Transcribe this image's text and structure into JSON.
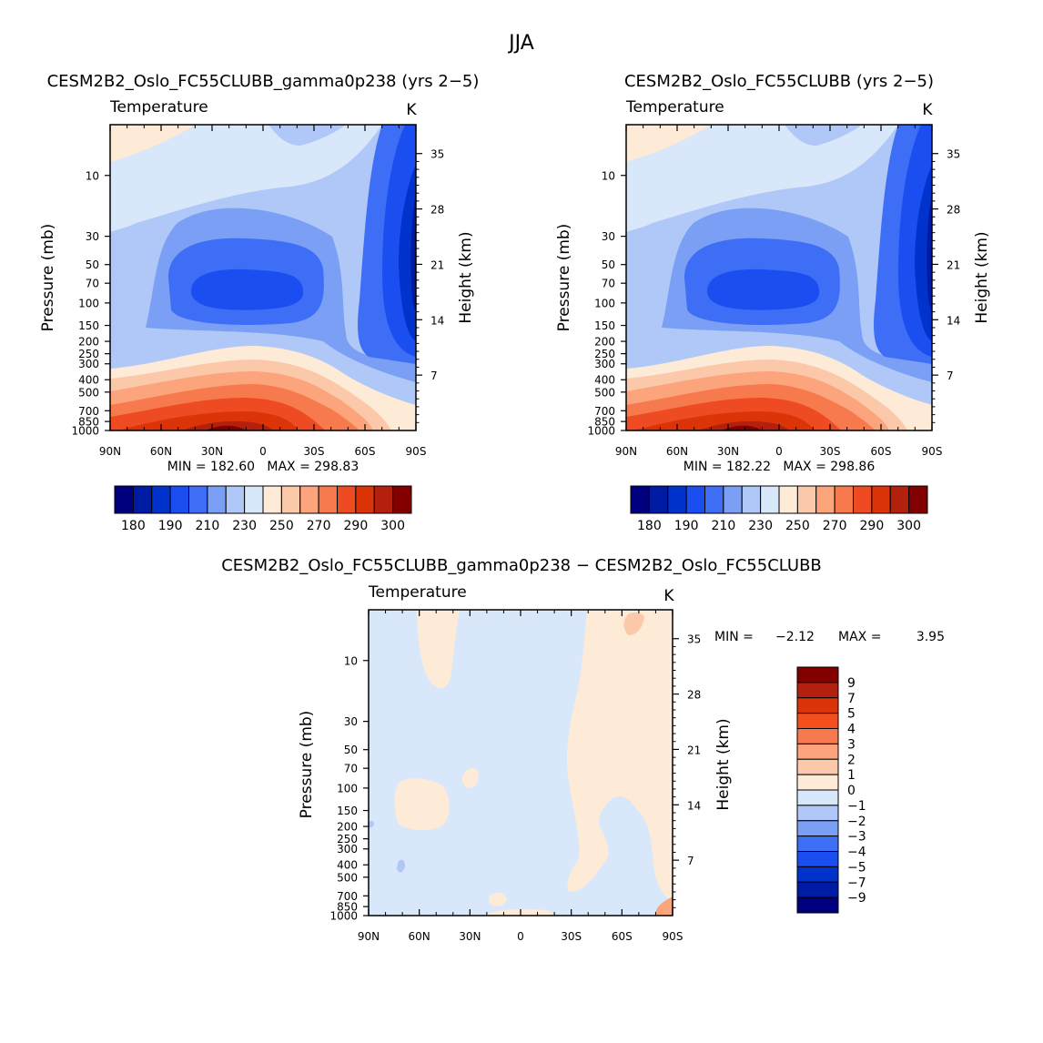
{
  "figure": {
    "title": "JJA"
  },
  "panels": {
    "p1": {
      "title": "CESM2B2_Oslo_FC55CLUBB_gamma0p238 (yrs 2−5)",
      "variable": "Temperature",
      "units": "K",
      "ylabel": "Pressure (mb)",
      "y2label": "Height (km)",
      "stats": "MIN = 182.60   MAX = 298.83"
    },
    "p2": {
      "title": "CESM2B2_Oslo_FC55CLUBB (yrs 2−5)",
      "variable": "Temperature",
      "units": "K",
      "ylabel": "Pressure (mb)",
      "y2label": "Height (km)",
      "stats": "MIN = 182.22   MAX = 298.86"
    },
    "p3": {
      "title": "CESM2B2_Oslo_FC55CLUBB_gamma0p238 − CESM2B2_Oslo_FC55CLUBB",
      "variable": "Temperature",
      "units": "K",
      "ylabel": "Pressure (mb)",
      "y2label": "Height (km)",
      "stats_min_label": "MIN =",
      "stats_min": "−2.12",
      "stats_max_label": "MAX =",
      "stats_max": "3.95"
    }
  },
  "chart_data": [
    {
      "type": "heatmap",
      "panel": "p1",
      "title": "CESM2B2_Oslo_FC55CLUBB_gamma0p238 (yrs 2−5)",
      "x_ticks": [
        "90N",
        "60N",
        "30N",
        "0",
        "30S",
        "60S",
        "90S"
      ],
      "y_ticks": [
        "10",
        "30",
        "50",
        "70",
        "100",
        "150",
        "200",
        "250",
        "300",
        "400",
        "500",
        "700",
        "850",
        "1000"
      ],
      "y_scale": "log",
      "ylim": [
        1000,
        4
      ],
      "y2_ticks": [
        "7",
        "14",
        "21",
        "28",
        "35"
      ],
      "min": 182.6,
      "max": 298.83,
      "colorbar_levels": [
        180,
        185,
        190,
        200,
        210,
        220,
        230,
        240,
        250,
        260,
        270,
        280,
        290,
        295,
        300
      ],
      "colorbar_labels": [
        "180",
        "190",
        "210",
        "230",
        "250",
        "270",
        "290",
        "300"
      ]
    },
    {
      "type": "heatmap",
      "panel": "p2",
      "title": "CESM2B2_Oslo_FC55CLUBB (yrs 2−5)",
      "x_ticks": [
        "90N",
        "60N",
        "30N",
        "0",
        "30S",
        "60S",
        "90S"
      ],
      "y_ticks": [
        "10",
        "30",
        "50",
        "70",
        "100",
        "150",
        "200",
        "250",
        "300",
        "400",
        "500",
        "700",
        "850",
        "1000"
      ],
      "y_scale": "log",
      "ylim": [
        1000,
        4
      ],
      "y2_ticks": [
        "7",
        "14",
        "21",
        "28",
        "35"
      ],
      "min": 182.22,
      "max": 298.86,
      "colorbar_levels": [
        180,
        185,
        190,
        200,
        210,
        220,
        230,
        240,
        250,
        260,
        270,
        280,
        290,
        295,
        300
      ],
      "colorbar_labels": [
        "180",
        "190",
        "210",
        "230",
        "250",
        "270",
        "290",
        "300"
      ]
    },
    {
      "type": "heatmap",
      "panel": "p3",
      "title": "CESM2B2_Oslo_FC55CLUBB_gamma0p238 − CESM2B2_Oslo_FC55CLUBB",
      "x_ticks": [
        "90N",
        "60N",
        "30N",
        "0",
        "30S",
        "60S",
        "90S"
      ],
      "y_ticks": [
        "10",
        "30",
        "50",
        "70",
        "100",
        "150",
        "200",
        "250",
        "300",
        "400",
        "500",
        "700",
        "850",
        "1000"
      ],
      "y_scale": "log",
      "ylim": [
        1000,
        4
      ],
      "y2_ticks": [
        "7",
        "14",
        "21",
        "28",
        "35"
      ],
      "min": -2.12,
      "max": 3.95,
      "colorbar_labels": [
        "9",
        "7",
        "5",
        "4",
        "3",
        "2",
        "1",
        "0",
        "−1",
        "−2",
        "−3",
        "−4",
        "−5",
        "−7",
        "−9"
      ]
    }
  ],
  "colors": {
    "abs_colorbar": [
      "#00007f",
      "#001ba3",
      "#0033cc",
      "#1a4ef0",
      "#3d6ef5",
      "#7a9ff5",
      "#b0c8f8",
      "#d8e8fa",
      "#fdebd8",
      "#fcc8aa",
      "#fca47c",
      "#f77a4e",
      "#ee4b22",
      "#db3408",
      "#b3210e",
      "#820000"
    ],
    "diff_colorbar": [
      "#820000",
      "#b3210e",
      "#db3408",
      "#f34e1c",
      "#f77a4e",
      "#fca47c",
      "#fcc8aa",
      "#fdebd8",
      "#d8e8fa",
      "#b0c8f8",
      "#7a9ff5",
      "#3d6ef5",
      "#1a4ef0",
      "#0033cc",
      "#001ba3",
      "#00007f"
    ]
  }
}
